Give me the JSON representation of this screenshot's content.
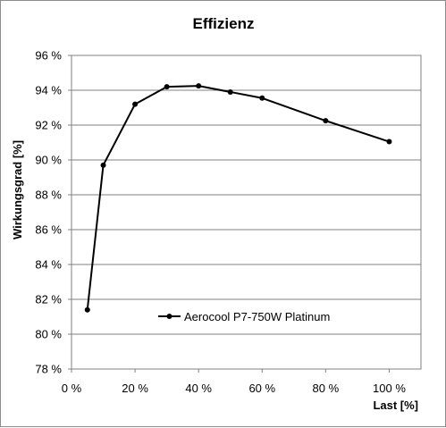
{
  "chart_data": {
    "type": "line",
    "title": "Effizienz",
    "xlabel": "Last [%]",
    "ylabel": "Wirkungsgrad [%]",
    "xlim": [
      0,
      110
    ],
    "ylim": [
      78,
      96
    ],
    "x_ticks": [
      0,
      20,
      40,
      60,
      80,
      100
    ],
    "y_ticks": [
      78,
      80,
      82,
      84,
      86,
      88,
      90,
      92,
      94,
      96
    ],
    "x_tick_labels": [
      "0 %",
      "20 %",
      "40 %",
      "60 %",
      "80 %",
      "100 %"
    ],
    "y_tick_labels": [
      "78 %",
      "80 %",
      "82 %",
      "84 %",
      "86 %",
      "88 %",
      "90 %",
      "92 %",
      "94 %",
      "96 %"
    ],
    "grid": "horizontal",
    "legend_position": "lower-center",
    "series": [
      {
        "name": "Aerocool P7-750W Platinum",
        "color": "#000000",
        "x": [
          5,
          10,
          20,
          30,
          40,
          50,
          60,
          80,
          100
        ],
        "y": [
          81.4,
          89.7,
          93.2,
          94.2,
          94.25,
          93.9,
          93.55,
          92.25,
          91.05
        ]
      }
    ]
  }
}
